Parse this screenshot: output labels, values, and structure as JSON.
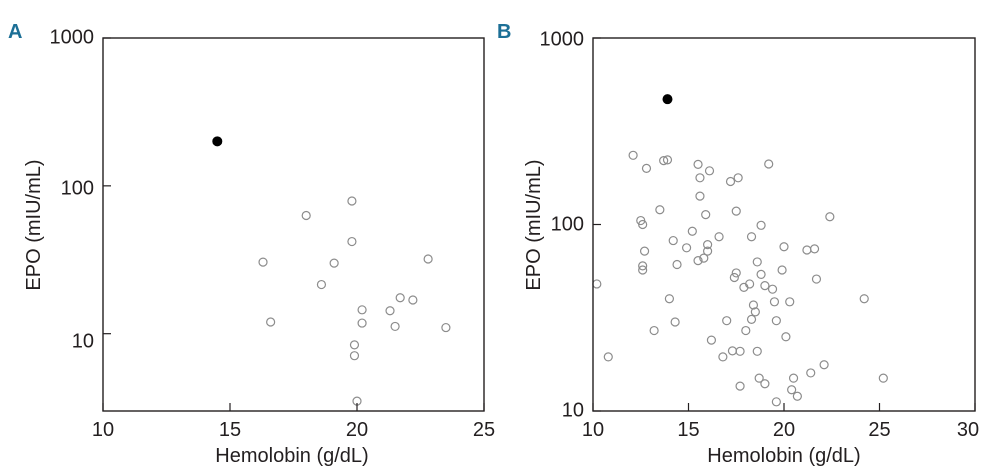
{
  "chart_data": [
    {
      "panel": "A",
      "type": "scatter",
      "xlabel": "Hemolobin (g/dL)",
      "ylabel": "EPO (mIU/mL)",
      "xlim": [
        10,
        25
      ],
      "ylim": [
        3,
        1000
      ],
      "yscale": "log",
      "xticks": [
        "10",
        "15",
        "20",
        "25"
      ],
      "yticks": [
        "10",
        "100",
        "1000"
      ],
      "grid": false,
      "series": [
        {
          "marker": "filled-circle",
          "color": "#000000",
          "points": [
            [
              14.5,
              200
            ]
          ]
        },
        {
          "marker": "open-circle",
          "color": "#8c8c8c",
          "points": [
            [
              16.3,
              30.5
            ],
            [
              16.6,
              12
            ],
            [
              18.0,
              63
            ],
            [
              18.6,
              21.5
            ],
            [
              19.1,
              30
            ],
            [
              19.8,
              79
            ],
            [
              19.8,
              42
            ],
            [
              19.9,
              8.4
            ],
            [
              19.9,
              7.1
            ],
            [
              20.0,
              3.5
            ],
            [
              20.2,
              14.5
            ],
            [
              20.2,
              11.8
            ],
            [
              21.3,
              14.3
            ],
            [
              21.5,
              11.2
            ],
            [
              21.7,
              17.5
            ],
            [
              22.2,
              16.9
            ],
            [
              22.8,
              32
            ],
            [
              23.5,
              11
            ]
          ]
        }
      ]
    },
    {
      "panel": "B",
      "type": "scatter",
      "xlabel": "Hemolobin (g/dL)",
      "ylabel": "EPO (mIU/mL)",
      "xlim": [
        10,
        30
      ],
      "ylim": [
        10,
        1000
      ],
      "yscale": "log",
      "xticks": [
        "10",
        "15",
        "20",
        "25",
        "30"
      ],
      "yticks": [
        "10",
        "100",
        "1000"
      ],
      "grid": false,
      "series": [
        {
          "marker": "filled-circle",
          "color": "#000000",
          "points": [
            [
              13.9,
              470
            ]
          ]
        },
        {
          "marker": "open-circle",
          "color": "#8c8c8c",
          "points": [
            [
              10.2,
              48
            ],
            [
              10.8,
              19.5
            ],
            [
              12.1,
              235
            ],
            [
              12.5,
              105
            ],
            [
              12.6,
              100
            ],
            [
              12.6,
              60
            ],
            [
              12.6,
              57
            ],
            [
              12.7,
              72
            ],
            [
              12.8,
              200
            ],
            [
              13.2,
              27
            ],
            [
              13.5,
              120
            ],
            [
              13.7,
              220
            ],
            [
              13.9,
              222
            ],
            [
              14.0,
              40
            ],
            [
              14.2,
              82
            ],
            [
              14.3,
              30
            ],
            [
              14.4,
              61
            ],
            [
              14.9,
              75
            ],
            [
              15.2,
              92
            ],
            [
              15.5,
              210
            ],
            [
              15.5,
              64
            ],
            [
              15.6,
              142
            ],
            [
              15.6,
              178
            ],
            [
              15.8,
              66
            ],
            [
              15.9,
              113
            ],
            [
              16.0,
              78
            ],
            [
              16.0,
              72
            ],
            [
              16.1,
              194
            ],
            [
              16.2,
              24
            ],
            [
              16.6,
              86
            ],
            [
              16.8,
              19.5
            ],
            [
              17.0,
              30.5
            ],
            [
              17.2,
              170
            ],
            [
              17.3,
              21
            ],
            [
              17.4,
              52
            ],
            [
              17.5,
              118
            ],
            [
              17.5,
              55
            ],
            [
              17.6,
              178
            ],
            [
              17.7,
              20.9
            ],
            [
              17.7,
              13.6
            ],
            [
              17.9,
              46
            ],
            [
              18.0,
              27
            ],
            [
              18.2,
              48
            ],
            [
              18.3,
              86
            ],
            [
              18.3,
              31
            ],
            [
              18.4,
              37
            ],
            [
              18.5,
              34
            ],
            [
              18.6,
              63
            ],
            [
              18.6,
              20.9
            ],
            [
              18.7,
              15
            ],
            [
              18.8,
              54
            ],
            [
              18.8,
              99
            ],
            [
              19.0,
              47
            ],
            [
              19.0,
              14
            ],
            [
              19.2,
              211
            ],
            [
              19.4,
              45
            ],
            [
              19.5,
              38.5
            ],
            [
              19.6,
              30.5
            ],
            [
              19.6,
              11.2
            ],
            [
              19.9,
              57
            ],
            [
              20.0,
              76
            ],
            [
              20.1,
              25
            ],
            [
              20.3,
              38.5
            ],
            [
              20.4,
              13
            ],
            [
              20.5,
              15
            ],
            [
              20.7,
              12
            ],
            [
              21.2,
              73
            ],
            [
              21.4,
              16
            ],
            [
              21.6,
              74
            ],
            [
              21.7,
              51
            ],
            [
              22.1,
              17.7
            ],
            [
              22.4,
              110
            ],
            [
              24.2,
              40
            ],
            [
              25.2,
              15
            ]
          ]
        }
      ]
    }
  ]
}
